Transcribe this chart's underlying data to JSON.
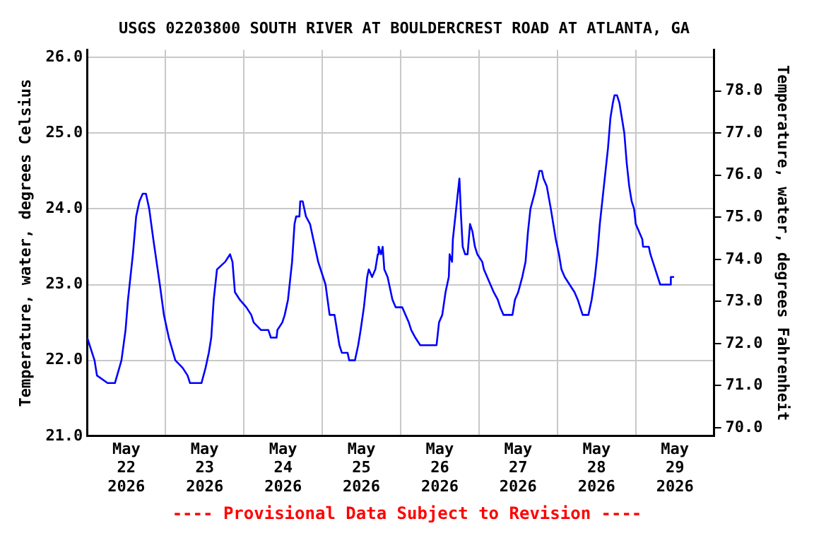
{
  "chart_data": {
    "type": "line",
    "title": "USGS 02203800 SOUTH RIVER AT BOULDERCREST ROAD AT ATLANTA, GA",
    "ylabel": "Temperature, water, degrees Celsius",
    "y2label": "Temperature, water, degrees Fahrenheit",
    "annotations": [
      "---- Provisional Data Subject to Revision ----"
    ],
    "x": [
      "2026-05-22T00:00",
      "2026-05-22T02:15",
      "2026-05-22T03:00",
      "2026-05-22T06:15",
      "2026-05-22T08:30",
      "2026-05-22T10:30",
      "2026-05-22T11:45",
      "2026-05-22T12:30",
      "2026-05-22T14:00",
      "2026-05-22T15:00",
      "2026-05-22T16:00",
      "2026-05-22T17:00",
      "2026-05-22T18:00",
      "2026-05-22T19:00",
      "2026-05-22T20:15",
      "2026-05-22T21:15",
      "2026-05-22T22:15",
      "2026-05-22T23:30",
      "2026-05-23T01:00",
      "2026-05-23T03:00",
      "2026-05-23T05:15",
      "2026-05-23T06:45",
      "2026-05-23T07:30",
      "2026-05-23T11:00",
      "2026-05-23T12:15",
      "2026-05-23T13:15",
      "2026-05-23T14:00",
      "2026-05-23T14:45",
      "2026-05-23T15:45",
      "2026-05-23T18:15",
      "2026-05-23T19:45",
      "2026-05-23T20:30",
      "2026-05-23T21:15",
      "2026-05-23T22:45",
      "2026-05-24T00:45",
      "2026-05-24T02:15",
      "2026-05-24T03:00",
      "2026-05-24T05:15",
      "2026-05-24T07:30",
      "2026-05-24T08:15",
      "2026-05-24T10:00",
      "2026-05-24T10:15",
      "2026-05-24T11:45",
      "2026-05-24T12:30",
      "2026-05-24T13:30",
      "2026-05-24T14:45",
      "2026-05-24T15:30",
      "2026-05-24T16:00",
      "2026-05-24T17:00",
      "2026-05-24T17:15",
      "2026-05-24T18:00",
      "2026-05-24T19:00",
      "2026-05-24T20:15",
      "2026-05-24T21:15",
      "2026-05-24T22:45",
      "2026-05-25T01:00",
      "2026-05-25T02:15",
      "2026-05-25T03:45",
      "2026-05-25T04:30",
      "2026-05-25T05:15",
      "2026-05-25T06:00",
      "2026-05-25T07:45",
      "2026-05-25T08:15",
      "2026-05-25T10:00",
      "2026-05-25T11:00",
      "2026-05-25T11:45",
      "2026-05-25T12:45",
      "2026-05-25T13:45",
      "2026-05-25T14:15",
      "2026-05-25T15:15",
      "2026-05-25T16:15",
      "2026-05-25T17:00",
      "2026-05-25T17:15",
      "2026-05-25T18:00",
      "2026-05-25T18:30",
      "2026-05-25T19:00",
      "2026-05-25T20:00",
      "2026-05-25T20:30",
      "2026-05-25T21:30",
      "2026-05-25T22:30",
      "2026-05-26T00:30",
      "2026-05-26T01:30",
      "2026-05-26T02:30",
      "2026-05-26T03:15",
      "2026-05-26T04:30",
      "2026-05-26T06:00",
      "2026-05-26T11:00",
      "2026-05-26T11:45",
      "2026-05-26T12:45",
      "2026-05-26T13:45",
      "2026-05-26T14:45",
      "2026-05-26T15:00",
      "2026-05-26T15:45",
      "2026-05-26T16:00",
      "2026-05-26T17:00",
      "2026-05-26T17:30",
      "2026-05-26T18:00",
      "2026-05-26T18:30",
      "2026-05-26T19:00",
      "2026-05-26T19:45",
      "2026-05-26T20:30",
      "2026-05-26T21:15",
      "2026-05-26T22:00",
      "2026-05-26T22:45",
      "2026-05-26T23:30",
      "2026-05-27T01:00",
      "2026-05-27T01:30",
      "2026-05-27T02:30",
      "2026-05-27T03:30",
      "2026-05-27T04:30",
      "2026-05-27T05:45",
      "2026-05-27T06:30",
      "2026-05-27T07:30",
      "2026-05-27T10:15",
      "2026-05-27T11:00",
      "2026-05-27T12:00",
      "2026-05-27T13:15",
      "2026-05-27T14:15",
      "2026-05-27T15:00",
      "2026-05-27T15:45",
      "2026-05-27T17:00",
      "2026-05-27T18:00",
      "2026-05-27T18:30",
      "2026-05-27T19:15",
      "2026-05-27T19:45",
      "2026-05-27T20:45",
      "2026-05-27T22:00",
      "2026-05-27T22:45",
      "2026-05-27T23:30",
      "2026-05-28T00:30",
      "2026-05-28T01:15",
      "2026-05-28T02:15",
      "2026-05-28T03:45",
      "2026-05-28T05:15",
      "2026-05-28T06:15",
      "2026-05-28T07:00",
      "2026-05-28T07:45",
      "2026-05-28T09:30",
      "2026-05-28T10:30",
      "2026-05-28T11:30",
      "2026-05-28T12:15",
      "2026-05-28T13:00",
      "2026-05-28T14:00",
      "2026-05-28T14:45",
      "2026-05-28T15:30",
      "2026-05-28T16:15",
      "2026-05-28T17:00",
      "2026-05-28T17:30",
      "2026-05-28T18:15",
      "2026-05-28T19:00",
      "2026-05-28T19:45",
      "2026-05-28T20:30",
      "2026-05-28T21:15",
      "2026-05-28T22:00",
      "2026-05-28T22:45",
      "2026-05-28T23:30",
      "2026-05-29T00:00",
      "2026-05-29T01:00",
      "2026-05-29T02:00",
      "2026-05-29T02:15",
      "2026-05-29T04:00",
      "2026-05-29T04:30",
      "2026-05-29T05:15",
      "2026-05-29T06:00",
      "2026-05-29T06:45",
      "2026-05-29T07:30",
      "2026-05-29T10:30",
      "2026-05-29T10:45",
      "2026-05-29T11:45"
    ],
    "series": [
      {
        "color": "#0000ff",
        "values": [
          22.3,
          22.0,
          21.8,
          21.7,
          21.7,
          22.0,
          22.4,
          22.8,
          23.4,
          23.9,
          24.1,
          24.2,
          24.2,
          24.0,
          23.6,
          23.3,
          23.0,
          22.6,
          22.3,
          22.0,
          21.9,
          21.8,
          21.7,
          21.7,
          21.9,
          22.1,
          22.3,
          22.8,
          23.2,
          23.3,
          23.4,
          23.3,
          22.9,
          22.8,
          22.7,
          22.6,
          22.5,
          22.4,
          22.4,
          22.3,
          22.3,
          22.4,
          22.5,
          22.6,
          22.8,
          23.3,
          23.8,
          23.9,
          23.9,
          24.1,
          24.1,
          23.9,
          23.8,
          23.6,
          23.3,
          23.0,
          22.6,
          22.6,
          22.4,
          22.2,
          22.1,
          22.1,
          22.0,
          22.0,
          22.2,
          22.4,
          22.7,
          23.1,
          23.2,
          23.1,
          23.2,
          23.4,
          23.5,
          23.4,
          23.5,
          23.2,
          23.1,
          23.0,
          22.8,
          22.7,
          22.7,
          22.6,
          22.5,
          22.4,
          22.3,
          22.2,
          22.2,
          22.5,
          22.6,
          22.9,
          23.1,
          23.4,
          23.3,
          23.6,
          24.0,
          24.2,
          24.4,
          23.9,
          23.5,
          23.4,
          23.4,
          23.8,
          23.7,
          23.5,
          23.4,
          23.3,
          23.2,
          23.1,
          23.0,
          22.9,
          22.8,
          22.7,
          22.6,
          22.6,
          22.8,
          22.9,
          23.1,
          23.3,
          23.7,
          24.0,
          24.2,
          24.4,
          24.5,
          24.5,
          24.4,
          24.3,
          24.0,
          23.8,
          23.6,
          23.4,
          23.2,
          23.1,
          23.0,
          22.9,
          22.8,
          22.7,
          22.6,
          22.6,
          22.8,
          23.1,
          23.4,
          23.8,
          24.2,
          24.5,
          24.8,
          25.2,
          25.4,
          25.5,
          25.5,
          25.4,
          25.2,
          25.0,
          24.6,
          24.3,
          24.1,
          24.0,
          23.8,
          23.7,
          23.6,
          23.5,
          23.5,
          23.4,
          23.3,
          23.2,
          23.1,
          23.0,
          23.0,
          23.1,
          23.1
        ]
      }
    ],
    "xlim": [
      "2026-05-22T00:00",
      "2026-05-30T00:00"
    ],
    "xticks": [
      {
        "value": "2026-05-22T12:00",
        "label": "May 22 2026"
      },
      {
        "value": "2026-05-23T00:00",
        "label": null
      },
      {
        "value": "2026-05-23T12:00",
        "label": "May 23 2026"
      },
      {
        "value": "2026-05-24T00:00",
        "label": null
      },
      {
        "value": "2026-05-24T12:00",
        "label": "May 24 2026"
      },
      {
        "value": "2026-05-25T00:00",
        "label": null
      },
      {
        "value": "2026-05-25T12:00",
        "label": "May 25 2026"
      },
      {
        "value": "2026-05-26T00:00",
        "label": null
      },
      {
        "value": "2026-05-26T12:00",
        "label": "May 26 2026"
      },
      {
        "value": "2026-05-27T00:00",
        "label": null
      },
      {
        "value": "2026-05-27T12:00",
        "label": "May 27 2026"
      },
      {
        "value": "2026-05-28T00:00",
        "label": null
      },
      {
        "value": "2026-05-28T12:00",
        "label": "May 28 2026"
      },
      {
        "value": "2026-05-29T00:00",
        "label": null
      },
      {
        "value": "2026-05-29T12:00",
        "label": "May 29 2026"
      }
    ],
    "ylim": [
      21,
      26.1
    ],
    "yticks": [
      {
        "value": 21,
        "label": "21.0"
      },
      {
        "value": 22,
        "label": "22.0"
      },
      {
        "value": 23,
        "label": "23.0"
      },
      {
        "value": 24,
        "label": "24.0"
      },
      {
        "value": 25,
        "label": "25.0"
      },
      {
        "value": 26,
        "label": "26.0"
      }
    ],
    "y2lim": [
      69.8,
      78.98
    ],
    "y2ticks": [
      {
        "value": 70,
        "label": "70.0"
      },
      {
        "value": 71,
        "label": "71.0"
      },
      {
        "value": 72,
        "label": "72.0"
      },
      {
        "value": 73,
        "label": "73.0"
      },
      {
        "value": 74,
        "label": "74.0"
      },
      {
        "value": 75,
        "label": "75.0"
      },
      {
        "value": 76,
        "label": "76.0"
      },
      {
        "value": 77,
        "label": "77.0"
      },
      {
        "value": 78,
        "label": "78.0"
      }
    ],
    "grid": true,
    "legend": false,
    "marker": "none",
    "line_style": "solid"
  }
}
